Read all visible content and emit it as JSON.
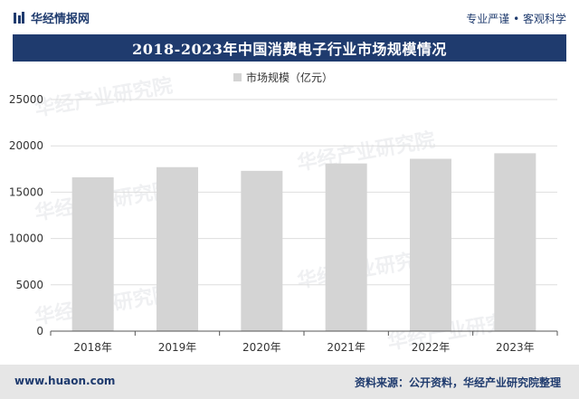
{
  "header": {
    "brand_name": "华经情报网",
    "tagline": "专业严谨 • 客观科学"
  },
  "chart_data": {
    "type": "bar",
    "title": "2018-2023年中国消费电子行业市场规模情况",
    "categories": [
      "2018年",
      "2019年",
      "2020年",
      "2021年",
      "2022年",
      "2023年"
    ],
    "series": [
      {
        "name": "市场规模（亿元）",
        "values": [
          16600,
          17700,
          17300,
          18100,
          18600,
          19200
        ]
      }
    ],
    "ylim": [
      0,
      25000
    ],
    "yticks": [
      0,
      5000,
      10000,
      15000,
      20000,
      25000
    ],
    "xlabel": "",
    "ylabel": "",
    "legend": "top-center",
    "bar_color": "#d4d4d4"
  },
  "watermark": {
    "text": "华经产业研究院"
  },
  "footer": {
    "url": "www.huaon.com",
    "source": "资料来源：公开资料，华经产业研究院整理"
  },
  "colors": {
    "brand_navy": "#1f3b6e",
    "footer_bg": "#e6e6e6"
  }
}
